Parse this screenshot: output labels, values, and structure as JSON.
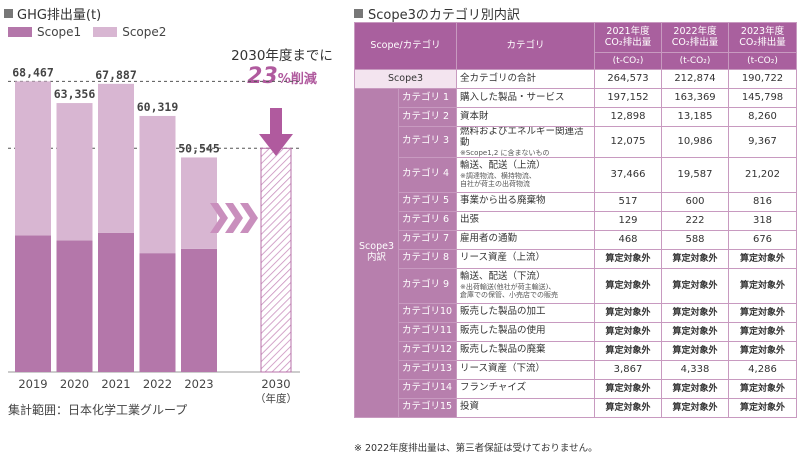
{
  "left": {
    "title": "GHG排出量(t)",
    "legend": [
      {
        "label": "Scope1",
        "color": "#b477aa"
      },
      {
        "label": "Scope2",
        "color": "#d8b6d2"
      }
    ],
    "target_text": "2030年度までに",
    "target_pct": "23",
    "target_suffix": "%削減",
    "target_year": "2030",
    "target_unit": "（年度）",
    "source_note": "集計範囲：日本化学工業グループ"
  },
  "chart_data": {
    "type": "bar",
    "stacked": true,
    "categories": [
      "2019",
      "2020",
      "2021",
      "2022",
      "2023"
    ],
    "series": [
      {
        "name": "Scope1",
        "values": [
          32200,
          31000,
          32800,
          28000,
          29000
        ],
        "color": "#b477aa"
      },
      {
        "name": "Scope2",
        "values": [
          36267,
          32356,
          35087,
          32319,
          21545
        ],
        "color": "#d8b6d2"
      }
    ],
    "totals": [
      68467,
      63356,
      67887,
      60319,
      50545
    ],
    "total_labels": [
      "68,467",
      "63,356",
      "67,887",
      "60,319",
      "50,545"
    ],
    "target": {
      "category": "2030",
      "value": 52700
    },
    "reference_lines": [
      68467,
      52700
    ],
    "ylim": [
      0,
      73500
    ],
    "title": "GHG排出量(t)"
  },
  "table": {
    "title": "Scope3のカテゴリ別内訳",
    "header": {
      "col1": "Scope/カテゴリ",
      "col2": "カテゴリ",
      "years": [
        "2021年度",
        "2022年度",
        "2023年度"
      ],
      "metric": "CO₂排出量",
      "unit": "(t-CO₂)"
    },
    "scope3_label": "Scope3",
    "total_row": {
      "name": "全カテゴリの合計",
      "values": [
        "264,573",
        "212,874",
        "190,722"
      ]
    },
    "group_label_1": "Scope3",
    "group_label_2": "内訳",
    "rows": [
      {
        "cat": "カテゴリ 1",
        "name": "購入した製品・サービス",
        "values": [
          "197,152",
          "163,369",
          "145,798"
        ]
      },
      {
        "cat": "カテゴリ 2",
        "name": "資本財",
        "values": [
          "12,898",
          "13,185",
          "8,260"
        ]
      },
      {
        "cat": "カテゴリ 3",
        "name": "燃料およびエネルギー関連活動",
        "notes": [
          "※Scope1,2 に含まないもの"
        ],
        "values": [
          "12,075",
          "10,986",
          "9,367"
        ]
      },
      {
        "cat": "カテゴリ 4",
        "name": "輸送、配送（上流）",
        "notes": [
          "※調達物流、横持物流、",
          "自社が荷主の出荷物流"
        ],
        "values": [
          "37,466",
          "19,587",
          "21,202"
        ]
      },
      {
        "cat": "カテゴリ 5",
        "name": "事業から出る廃棄物",
        "values": [
          "517",
          "600",
          "816"
        ]
      },
      {
        "cat": "カテゴリ 6",
        "name": "出張",
        "values": [
          "129",
          "222",
          "318"
        ]
      },
      {
        "cat": "カテゴリ 7",
        "name": "雇用者の通勤",
        "values": [
          "468",
          "588",
          "676"
        ]
      },
      {
        "cat": "カテゴリ 8",
        "name": "リース資産（上流）",
        "values": [
          "算定対象外",
          "算定対象外",
          "算定対象外"
        ]
      },
      {
        "cat": "カテゴリ 9",
        "name": "輸送、配送（下流）",
        "notes": [
          "※出荷輸送(他社が荷主輸送)、",
          "倉庫での保管、小売店での販売"
        ],
        "values": [
          "算定対象外",
          "算定対象外",
          "算定対象外"
        ]
      },
      {
        "cat": "カテゴリ10",
        "name": "販売した製品の加工",
        "values": [
          "算定対象外",
          "算定対象外",
          "算定対象外"
        ]
      },
      {
        "cat": "カテゴリ11",
        "name": "販売した製品の使用",
        "values": [
          "算定対象外",
          "算定対象外",
          "算定対象外"
        ]
      },
      {
        "cat": "カテゴリ12",
        "name": "販売した製品の廃棄",
        "values": [
          "算定対象外",
          "算定対象外",
          "算定対象外"
        ]
      },
      {
        "cat": "カテゴリ13",
        "name": "リース資産（下流）",
        "values": [
          "3,867",
          "4,338",
          "4,286"
        ]
      },
      {
        "cat": "カテゴリ14",
        "name": "フランチャイズ",
        "values": [
          "算定対象外",
          "算定対象外",
          "算定対象外"
        ]
      },
      {
        "cat": "カテゴリ15",
        "name": "投資",
        "values": [
          "算定対象外",
          "算定対象外",
          "算定対象外"
        ]
      }
    ],
    "footnote": "※ 2022年度排出量は、第三者保証は受けておりません。"
  }
}
